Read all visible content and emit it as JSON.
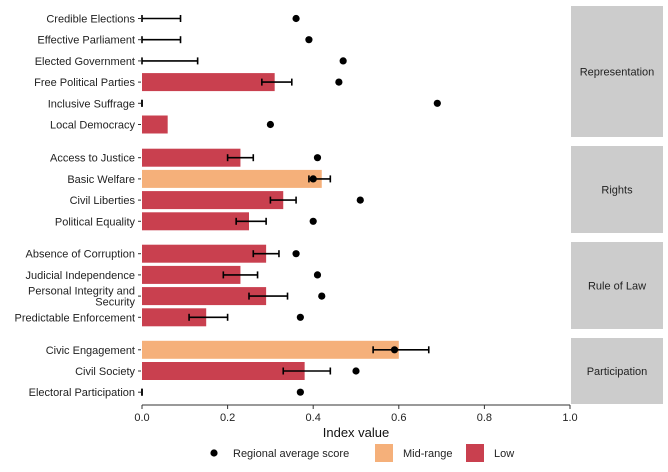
{
  "chart_data": {
    "type": "bar",
    "xlabel": "Index value",
    "xlim": [
      0,
      1
    ],
    "xticks": [
      "0.0",
      "0.2",
      "0.4",
      "0.6",
      "0.8",
      "1.0"
    ],
    "colors": {
      "Mid-range": "#f5b07a",
      "Low": "#c9404f",
      "point": "#000000",
      "strip": "#cccccc"
    },
    "legend": {
      "position": "bottom",
      "items": [
        {
          "label": "Regional average score",
          "kind": "point"
        },
        {
          "label": "Mid-range",
          "kind": "box",
          "color": "#f5b07a"
        },
        {
          "label": "Low",
          "kind": "box",
          "color": "#c9404f"
        }
      ]
    },
    "groups": [
      {
        "name": "Representation",
        "items": [
          {
            "label": "Credible Elections",
            "value": 0.0,
            "err_low": 0.0,
            "err_high": 0.09,
            "avg": 0.36,
            "level": "Low"
          },
          {
            "label": "Effective Parliament",
            "value": 0.0,
            "err_low": 0.0,
            "err_high": 0.09,
            "avg": 0.39,
            "level": "Low"
          },
          {
            "label": "Elected Government",
            "value": 0.0,
            "err_low": 0.0,
            "err_high": 0.13,
            "avg": 0.47,
            "level": "Low"
          },
          {
            "label": "Free Political Parties",
            "value": 0.31,
            "err_low": 0.28,
            "err_high": 0.35,
            "avg": 0.46,
            "level": "Low"
          },
          {
            "label": "Inclusive Suffrage",
            "value": 0.0,
            "err_low": 0.0,
            "err_high": 0.0,
            "avg": 0.69,
            "level": "Low"
          },
          {
            "label": "Local Democracy",
            "value": 0.06,
            "err_low": null,
            "err_high": null,
            "avg": 0.3,
            "level": "Low"
          }
        ]
      },
      {
        "name": "Rights",
        "items": [
          {
            "label": "Access to Justice",
            "value": 0.23,
            "err_low": 0.2,
            "err_high": 0.26,
            "avg": 0.41,
            "level": "Low"
          },
          {
            "label": "Basic Welfare",
            "value": 0.42,
            "err_low": 0.39,
            "err_high": 0.44,
            "avg": 0.4,
            "level": "Mid-range"
          },
          {
            "label": "Civil Liberties",
            "value": 0.33,
            "err_low": 0.3,
            "err_high": 0.36,
            "avg": 0.51,
            "level": "Low"
          },
          {
            "label": "Political Equality",
            "value": 0.25,
            "err_low": 0.22,
            "err_high": 0.29,
            "avg": 0.4,
            "level": "Low"
          }
        ]
      },
      {
        "name": "Rule of Law",
        "items": [
          {
            "label": "Absence of Corruption",
            "value": 0.29,
            "err_low": 0.26,
            "err_high": 0.32,
            "avg": 0.36,
            "level": "Low"
          },
          {
            "label": "Judicial Independence",
            "value": 0.23,
            "err_low": 0.19,
            "err_high": 0.27,
            "avg": 0.41,
            "level": "Low"
          },
          {
            "label": "Personal Integrity and\nSecurity",
            "value": 0.29,
            "err_low": 0.25,
            "err_high": 0.34,
            "avg": 0.42,
            "level": "Low"
          },
          {
            "label": "Predictable Enforcement",
            "value": 0.15,
            "err_low": 0.11,
            "err_high": 0.2,
            "avg": 0.37,
            "level": "Low"
          }
        ]
      },
      {
        "name": "Participation",
        "items": [
          {
            "label": "Civic Engagement",
            "value": 0.6,
            "err_low": 0.54,
            "err_high": 0.67,
            "avg": 0.59,
            "level": "Mid-range"
          },
          {
            "label": "Civil Society",
            "value": 0.38,
            "err_low": 0.33,
            "err_high": 0.44,
            "avg": 0.5,
            "level": "Low"
          },
          {
            "label": "Electoral Participation",
            "value": 0.0,
            "err_low": 0.0,
            "err_high": 0.0,
            "avg": 0.37,
            "level": "Low"
          }
        ]
      }
    ]
  }
}
